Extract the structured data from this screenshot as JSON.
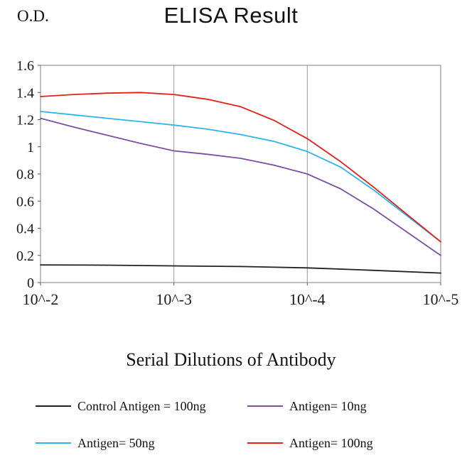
{
  "header": {
    "od_label": "O.D.",
    "title": "ELISA Result"
  },
  "xlabel": "Serial Dilutions of Antibody",
  "legend": {
    "position": "bottom",
    "items": [
      {
        "label": "Control Antigen = 100ng",
        "color": "#231F20"
      },
      {
        "label": "Antigen= 10ng",
        "color": "#7D4FA3"
      },
      {
        "label": "Antigen= 50ng",
        "color": "#2FB4E9"
      },
      {
        "label": "Antigen= 100ng",
        "color": "#E32119"
      }
    ]
  },
  "chart_data": {
    "type": "line",
    "title": "ELISA Result",
    "xlabel": "Serial Dilutions of Antibody",
    "ylabel": "O.D.",
    "x_tick_labels": [
      "10^-2",
      "10^-3",
      "10^-4",
      "10^-5"
    ],
    "y_ticks": [
      0,
      0.2,
      0.4,
      0.6,
      0.8,
      1,
      1.2,
      1.4,
      1.6
    ],
    "y_tick_labels": [
      "0",
      "0.2",
      "0.4",
      "0.6",
      "0.8",
      "1",
      "1.2",
      "1.4",
      "1.6"
    ],
    "ylim": [
      0,
      1.6
    ],
    "grid": "vertical-only",
    "legend_position": "bottom",
    "series": [
      {
        "name": "Control Antigen = 100ng",
        "color": "#231F20",
        "x": [
          0,
          0.5,
          1,
          1.5,
          2,
          2.5,
          3
        ],
        "values": [
          0.13,
          0.128,
          0.123,
          0.118,
          0.108,
          0.09,
          0.07
        ]
      },
      {
        "name": "Antigen= 10ng",
        "color": "#7D4FA3",
        "x": [
          0,
          0.25,
          0.5,
          0.75,
          1,
          1.25,
          1.5,
          1.75,
          2,
          2.25,
          2.5,
          2.75,
          3
        ],
        "values": [
          1.21,
          1.145,
          1.085,
          1.025,
          0.97,
          0.945,
          0.915,
          0.865,
          0.8,
          0.69,
          0.54,
          0.37,
          0.2
        ]
      },
      {
        "name": "Antigen= 50ng",
        "color": "#2FB4E9",
        "x": [
          0,
          0.25,
          0.5,
          0.75,
          1,
          1.25,
          1.5,
          1.75,
          2,
          2.25,
          2.5,
          2.75,
          3
        ],
        "values": [
          1.26,
          1.235,
          1.21,
          1.185,
          1.16,
          1.13,
          1.09,
          1.04,
          0.965,
          0.85,
          0.68,
          0.49,
          0.3
        ]
      },
      {
        "name": "Antigen= 100ng",
        "color": "#E32119",
        "x": [
          0,
          0.25,
          0.5,
          0.75,
          1,
          1.25,
          1.5,
          1.75,
          2,
          2.25,
          2.5,
          2.75,
          3
        ],
        "values": [
          1.37,
          1.385,
          1.395,
          1.4,
          1.385,
          1.35,
          1.295,
          1.195,
          1.06,
          0.89,
          0.7,
          0.5,
          0.3
        ]
      }
    ]
  }
}
